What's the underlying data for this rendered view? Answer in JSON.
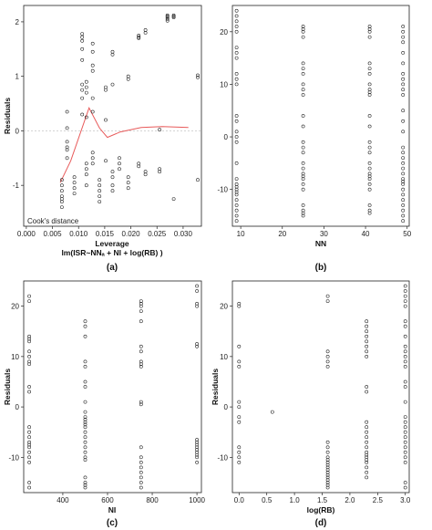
{
  "panels": [
    {
      "panel_label": "(a)",
      "annotation": "Cook's distance",
      "chart_data": {
        "type": "scatter",
        "xlabel": "Leverage",
        "xlabel2": "lm(ISR~NNₐ + NI + log(RB) )",
        "ylabel": "Residuals",
        "xlim": [
          -0.0005,
          0.0335
        ],
        "ylim": [
          -1.75,
          2.3
        ],
        "xticks": [
          "0.000",
          "0.005",
          "0.010",
          "0.015",
          "0.020",
          "0.025",
          "0.030"
        ],
        "yticks": [
          "2",
          "1",
          "0",
          "-1"
        ],
        "xtick_values": [
          0,
          0.005,
          0.01,
          0.015,
          0.02,
          0.025,
          0.03
        ],
        "ytick_values": [
          2,
          1,
          0,
          -1
        ],
        "reference_line_y": 0,
        "smoother": {
          "x": [
            0.0065,
            0.0085,
            0.012,
            0.014,
            0.0155,
            0.018,
            0.022,
            0.026,
            0.031
          ],
          "y": [
            -0.95,
            -0.55,
            0.42,
            0.05,
            -0.12,
            -0.02,
            0.06,
            0.08,
            0.06
          ]
        },
        "points": {
          "x": [
            0.0068,
            0.0068,
            0.0068,
            0.0068,
            0.0068,
            0.0068,
            0.0068,
            0.0078,
            0.0078,
            0.0078,
            0.0078,
            0.0078,
            0.0078,
            0.0092,
            0.0092,
            0.0092,
            0.0092,
            0.0107,
            0.0107,
            0.0107,
            0.0107,
            0.0107,
            0.0107,
            0.0107,
            0.0107,
            0.0107,
            0.0115,
            0.0115,
            0.0115,
            0.0115,
            0.0115,
            0.0115,
            0.0115,
            0.0115,
            0.0127,
            0.0127,
            0.0127,
            0.0127,
            0.0127,
            0.0127,
            0.0127,
            0.0127,
            0.0127,
            0.014,
            0.014,
            0.014,
            0.014,
            0.014,
            0.0152,
            0.0152,
            0.0152,
            0.0152,
            0.0165,
            0.0165,
            0.0165,
            0.0165,
            0.0165,
            0.0165,
            0.0165,
            0.0178,
            0.0178,
            0.0178,
            0.0195,
            0.0195,
            0.0195,
            0.0195,
            0.0195,
            0.0215,
            0.0215,
            0.0215,
            0.0215,
            0.0215,
            0.0228,
            0.0228,
            0.0228,
            0.0228,
            0.0255,
            0.0255,
            0.0255,
            0.027,
            0.027,
            0.027,
            0.027,
            0.027,
            0.0282,
            0.0282,
            0.0282,
            0.0282,
            0.0328,
            0.0328,
            0.0328
          ],
          "y": [
            -1.4,
            -1.3,
            -1.25,
            -1.2,
            -1.1,
            -1.0,
            -0.9,
            -0.5,
            -0.35,
            -0.3,
            -0.2,
            0.05,
            0.35,
            -1.15,
            -1.05,
            -0.95,
            -0.85,
            1.78,
            1.72,
            1.65,
            1.5,
            1.3,
            0.85,
            0.75,
            0.6,
            0.3,
            0.9,
            0.8,
            0.7,
            0.25,
            -0.6,
            -0.7,
            -0.8,
            -1.0,
            1.6,
            1.45,
            1.2,
            1.1,
            0.6,
            0.35,
            -0.4,
            -0.5,
            -0.6,
            -0.9,
            -1.0,
            -1.1,
            -1.2,
            -1.3,
            0.8,
            0.75,
            0.2,
            -0.55,
            1.45,
            1.4,
            0.85,
            -0.75,
            -0.85,
            -1.0,
            -1.1,
            -0.5,
            -0.6,
            -0.7,
            1.0,
            0.95,
            -0.85,
            -0.95,
            -1.05,
            1.75,
            1.72,
            1.7,
            -0.6,
            -0.65,
            1.85,
            1.8,
            -0.75,
            -0.8,
            0.02,
            -0.7,
            -0.75,
            2.12,
            2.1,
            2.08,
            2.05,
            2.02,
            2.12,
            2.1,
            2.08,
            -1.25,
            1.02,
            0.98,
            -0.9
          ]
        }
      }
    },
    {
      "panel_label": "(b)",
      "chart_data": {
        "type": "scatter",
        "xlabel": "NN",
        "ylabel": "",
        "xlim": [
          8,
          50.5
        ],
        "ylim": [
          -17,
          25
        ],
        "xticks": [
          "10",
          "20",
          "30",
          "40",
          "50"
        ],
        "yticks": [
          "20",
          "10",
          "0",
          "-10"
        ],
        "xtick_values": [
          10,
          20,
          30,
          40,
          50
        ],
        "ytick_values": [
          20,
          10,
          0,
          -10
        ],
        "points": {
          "x": [
            9,
            9,
            9,
            9,
            9,
            9,
            9,
            9,
            9,
            9,
            9,
            9,
            9,
            9,
            9,
            9,
            9,
            9,
            9,
            9,
            9,
            9,
            9,
            9,
            9,
            9,
            9,
            9,
            25,
            25,
            25,
            25,
            25,
            25,
            25,
            25,
            25,
            25,
            25,
            25,
            25,
            25,
            25,
            25,
            25,
            25,
            25,
            25,
            25,
            25,
            25,
            25,
            25,
            25,
            41,
            41,
            41,
            41,
            41,
            41,
            41,
            41,
            41,
            41,
            41,
            41,
            41,
            41,
            41,
            41,
            41,
            41,
            41,
            41,
            41,
            41,
            41,
            41,
            41,
            41,
            49,
            49,
            49,
            49,
            49,
            49,
            49,
            49,
            49,
            49,
            49,
            49,
            49,
            49,
            49,
            49,
            49,
            49,
            49,
            49,
            49,
            49,
            49,
            49,
            49,
            49,
            49,
            49,
            49,
            49
          ],
          "y": [
            24,
            23,
            22,
            21,
            20,
            17,
            16,
            15,
            12,
            11,
            10,
            4,
            3,
            1,
            0,
            -1,
            -5,
            -9,
            -9.5,
            -10,
            -10.5,
            -11,
            -12,
            -13,
            -14,
            -15,
            -16,
            -8,
            21,
            20.5,
            20,
            19,
            14,
            13,
            12,
            10,
            9,
            8,
            4,
            -2,
            -3,
            -5,
            -6,
            -7,
            -7.5,
            -8,
            -9,
            -10,
            -13,
            -14,
            -14.5,
            -15,
            -1,
            2,
            21,
            20.5,
            20,
            19,
            14,
            13,
            12,
            10,
            9,
            8.5,
            8,
            4,
            -2,
            -3,
            -5,
            -6,
            -7,
            -7.5,
            -8,
            -9,
            -10,
            -13,
            -14,
            -14.5,
            -1,
            2,
            21,
            20,
            19,
            18,
            16,
            14,
            12,
            11,
            10,
            9,
            8,
            5,
            3,
            1,
            -2,
            -4,
            -5,
            -6,
            -7,
            -8,
            -8.5,
            -9,
            -10,
            -11,
            -12,
            -13,
            -14,
            -15,
            -16,
            -3
          ]
        }
      }
    },
    {
      "panel_label": "(c)",
      "chart_data": {
        "type": "scatter",
        "xlabel": "NI",
        "ylabel": "Residuals",
        "xlim": [
          225,
          1020
        ],
        "ylim": [
          -17,
          25
        ],
        "xticks": [
          "400",
          "600",
          "800",
          "1000"
        ],
        "yticks": [
          "20",
          "10",
          "0",
          "-10"
        ],
        "xtick_values": [
          400,
          600,
          800,
          1000
        ],
        "ytick_values": [
          20,
          10,
          0,
          -10
        ],
        "points": {
          "x": [
            250,
            250,
            250,
            250,
            250,
            250,
            250,
            250,
            250,
            250,
            250,
            250,
            250,
            250,
            250,
            250,
            250,
            250,
            250,
            250,
            250,
            250,
            500,
            500,
            500,
            500,
            500,
            500,
            500,
            500,
            500,
            500,
            500,
            500,
            500,
            500,
            500,
            500,
            500,
            500,
            500,
            500,
            500,
            500,
            500,
            500,
            500,
            750,
            750,
            750,
            750,
            750,
            750,
            750,
            750,
            750,
            750,
            750,
            750,
            750,
            750,
            750,
            750,
            750,
            750,
            750,
            750,
            1000,
            1000,
            1000,
            1000,
            1000,
            1000,
            1000,
            1000,
            1000,
            1000,
            1000,
            1000,
            1000,
            1000,
            1000
          ],
          "y": [
            22,
            21,
            14,
            13.5,
            13,
            11,
            10,
            9,
            8.5,
            4,
            3,
            -4,
            -5,
            -6,
            -7,
            -8,
            -9,
            -10,
            -11,
            -15,
            -16,
            -7.5,
            17,
            16,
            14,
            9,
            8,
            5,
            4,
            1,
            -1,
            -2,
            -3,
            -4,
            -5,
            -6,
            -7,
            -8,
            -9,
            -10,
            -14,
            -15,
            -15.5,
            -16,
            -10.5,
            -2.5,
            -3.5,
            21,
            20.5,
            20,
            19,
            17,
            12,
            11,
            9,
            8.5,
            8,
            1,
            0.5,
            -8,
            -10,
            -11,
            -12,
            -13,
            -14,
            -15,
            -16,
            24,
            23,
            20.5,
            20,
            12.5,
            12,
            -7,
            -7.5,
            -8,
            -8.5,
            -9,
            -9.5,
            -10,
            -11,
            -6.5
          ]
        }
      }
    },
    {
      "panel_label": "(d)",
      "chart_data": {
        "type": "scatter",
        "xlabel": "log(RB)",
        "ylabel": "Residuals",
        "xlim": [
          -0.12,
          3.07
        ],
        "ylim": [
          -17,
          25
        ],
        "xticks": [
          "0.0",
          "0.5",
          "1.0",
          "1.5",
          "2.0",
          "2.5",
          "3.0"
        ],
        "yticks": [
          "20",
          "10",
          "0",
          "-10"
        ],
        "xtick_values": [
          0,
          0.5,
          1.0,
          1.5,
          2.0,
          2.5,
          3.0
        ],
        "ytick_values": [
          20,
          10,
          0,
          -10
        ],
        "points": {
          "x": [
            0,
            0,
            0,
            0,
            0,
            0,
            0,
            0,
            0,
            0,
            0,
            0,
            0,
            0.6,
            1.6,
            1.6,
            1.6,
            1.6,
            1.6,
            1.6,
            1.6,
            1.6,
            1.6,
            1.6,
            1.6,
            1.6,
            1.6,
            1.6,
            1.6,
            1.6,
            1.6,
            1.6,
            1.6,
            1.6,
            1.6,
            1.6,
            2.3,
            2.3,
            2.3,
            2.3,
            2.3,
            2.3,
            2.3,
            2.3,
            2.3,
            2.3,
            2.3,
            2.3,
            2.3,
            2.3,
            2.3,
            2.3,
            2.3,
            2.3,
            2.3,
            2.3,
            2.3,
            2.3,
            2.3,
            2.3,
            3.0,
            3.0,
            3.0,
            3.0,
            3.0,
            3.0,
            3.0,
            3.0,
            3.0,
            3.0,
            3.0,
            3.0,
            3.0,
            3.0,
            3.0,
            3.0,
            3.0,
            3.0,
            3.0,
            3.0,
            3.0,
            3.0,
            3.0,
            3.0,
            3.0,
            3.0,
            3.0,
            3.0
          ],
          "y": [
            20.5,
            20,
            12,
            9,
            8,
            1,
            0,
            -2,
            -3,
            -8,
            -9,
            -10,
            -11,
            -1,
            22,
            21,
            11,
            10,
            9,
            8,
            -7,
            -8,
            -9,
            -10,
            -11,
            -12,
            -13,
            -14,
            -14.5,
            -15,
            -15.5,
            -16,
            -13.5,
            -12.5,
            -11.5,
            -10.5,
            17,
            16,
            15,
            14,
            13,
            12,
            11,
            10,
            4,
            3,
            -3,
            -4,
            -5,
            -6,
            -7,
            -8,
            -9,
            -10,
            -11,
            -12,
            -13,
            -14,
            -9.5,
            -10.5,
            24,
            23,
            22,
            21,
            20,
            17,
            16,
            14,
            12,
            11,
            10,
            9,
            8,
            5,
            4,
            1,
            -2,
            -4,
            -5,
            -6,
            -7,
            -8,
            -9,
            -10,
            -11,
            -15,
            -16,
            -3
          ]
        }
      }
    }
  ]
}
